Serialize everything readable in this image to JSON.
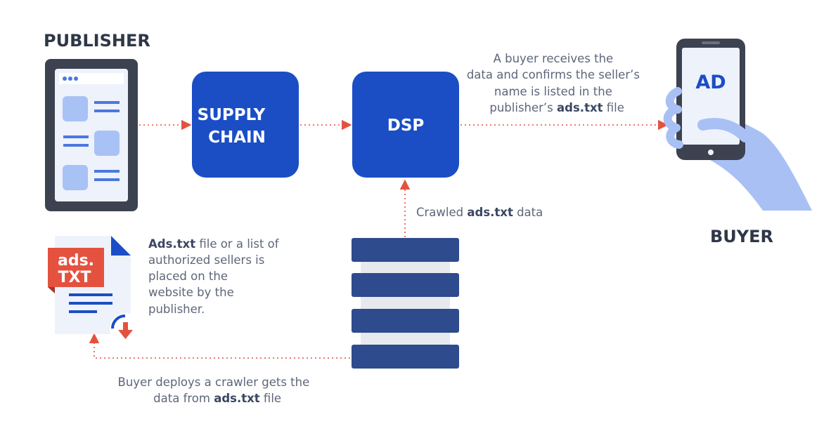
{
  "publisher": {
    "label": "PUBLISHER"
  },
  "nodes": [
    {
      "lines": [
        "SUPPLY",
        "CHAIN"
      ]
    },
    {
      "lines": [
        "DSP"
      ]
    }
  ],
  "buyer": {
    "label": "BUYER",
    "screen_text": "AD"
  },
  "ads_icon": {
    "lines": [
      "ads.",
      "TXT"
    ]
  },
  "annotations": {
    "buyer_receives": {
      "lines": [
        [
          "A buyer receives the"
        ],
        [
          "data and confirms the seller’s"
        ],
        [
          "name is listed in the"
        ],
        [
          "publisher’s ",
          "ads.txt",
          " file"
        ]
      ]
    },
    "crawled": {
      "lines": [
        [
          "Crawled ",
          "ads.txt",
          " data"
        ]
      ]
    },
    "ads_file": {
      "lines": [
        [
          "Ads.txt",
          " file or a list of"
        ],
        [
          "authorized sellers is"
        ],
        [
          "placed on the"
        ],
        [
          "website by the"
        ],
        [
          "publisher."
        ]
      ]
    },
    "crawler": {
      "lines": [
        [
          "Buyer deploys a crawler gets the"
        ],
        [
          "data from ",
          "ads.txt",
          " file"
        ]
      ]
    }
  }
}
